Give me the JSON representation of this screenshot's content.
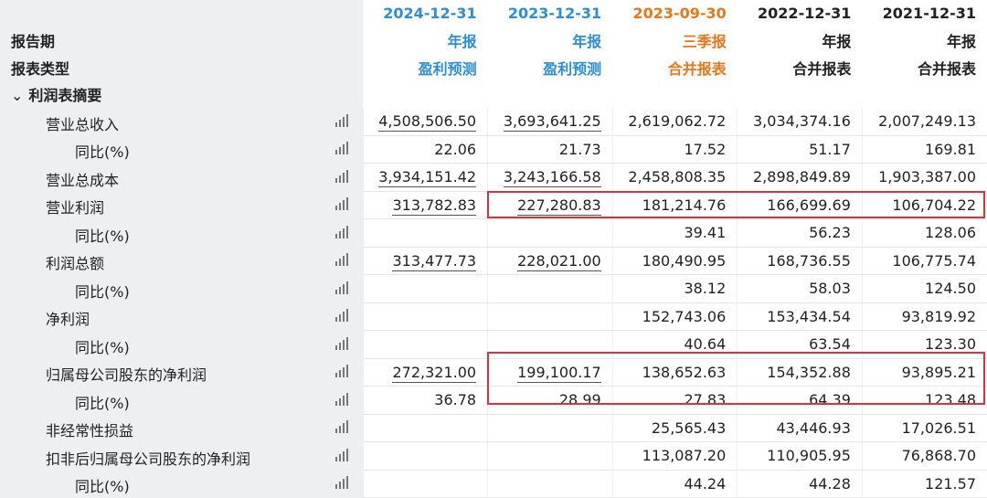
{
  "header": {
    "dates": [
      "2024-12-31",
      "2023-12-31",
      "2023-09-30",
      "2022-12-31",
      "2021-12-31"
    ],
    "date_colors": [
      "#2f8dd6",
      "#2f8dd6",
      "#e8761b",
      "#222222",
      "#222222"
    ],
    "report_period_label": "报告期",
    "periods": [
      "年报",
      "年报",
      "三季报",
      "年报",
      "年报"
    ],
    "report_type_label": "报表类型",
    "types": [
      "盈利预测",
      "盈利预测",
      "合并报表",
      "合并报表",
      "合并报表"
    ]
  },
  "section": {
    "title": "利润表摘要",
    "icon": "chevron-down-icon"
  },
  "rows": [
    {
      "label": "营业总收入",
      "sub": false,
      "values": [
        "4,508,506.50",
        "3,693,641.25",
        "2,619,062.72",
        "3,034,374.16",
        "2,007,249.13"
      ]
    },
    {
      "label": "同比(%)",
      "sub": true,
      "values": [
        "22.06",
        "21.73",
        "17.52",
        "51.17",
        "169.81"
      ]
    },
    {
      "label": "营业总成本",
      "sub": false,
      "values": [
        "3,934,151.42",
        "3,243,166.58",
        "2,458,808.35",
        "2,898,849.89",
        "1,903,387.00"
      ]
    },
    {
      "label": "营业利润",
      "sub": false,
      "values": [
        "313,782.83",
        "227,280.83",
        "181,214.76",
        "166,699.69",
        "106,704.22"
      ]
    },
    {
      "label": "同比(%)",
      "sub": true,
      "values": [
        "",
        "",
        "39.41",
        "56.23",
        "128.06"
      ]
    },
    {
      "label": "利润总额",
      "sub": false,
      "values": [
        "313,477.73",
        "228,021.00",
        "180,490.95",
        "168,736.55",
        "106,775.74"
      ]
    },
    {
      "label": "同比(%)",
      "sub": true,
      "values": [
        "",
        "",
        "38.12",
        "58.03",
        "124.50"
      ]
    },
    {
      "label": "净利润",
      "sub": false,
      "values": [
        "",
        "",
        "152,743.06",
        "153,434.54",
        "93,819.92"
      ]
    },
    {
      "label": "同比(%)",
      "sub": true,
      "values": [
        "",
        "",
        "40.64",
        "63.54",
        "123.30"
      ]
    },
    {
      "label": "归属母公司股东的净利润",
      "sub": false,
      "values": [
        "272,321.00",
        "199,100.17",
        "138,652.63",
        "154,352.88",
        "93,895.21"
      ]
    },
    {
      "label": "同比(%)",
      "sub": true,
      "values": [
        "36.78",
        "28.99",
        "27.83",
        "64.39",
        "123.48"
      ]
    },
    {
      "label": "非经常性损益",
      "sub": false,
      "values": [
        "",
        "",
        "25,565.43",
        "43,446.93",
        "17,026.51"
      ]
    },
    {
      "label": "扣非后归属母公司股东的净利润",
      "sub": false,
      "values": [
        "",
        "",
        "113,087.20",
        "110,905.95",
        "76,868.70"
      ]
    },
    {
      "label": "同比(%)",
      "sub": true,
      "values": [
        "",
        "",
        "44.24",
        "44.28",
        "121.57"
      ]
    }
  ],
  "chart_icon": "bar-chart-icon",
  "highlight_color": "#d9333b"
}
